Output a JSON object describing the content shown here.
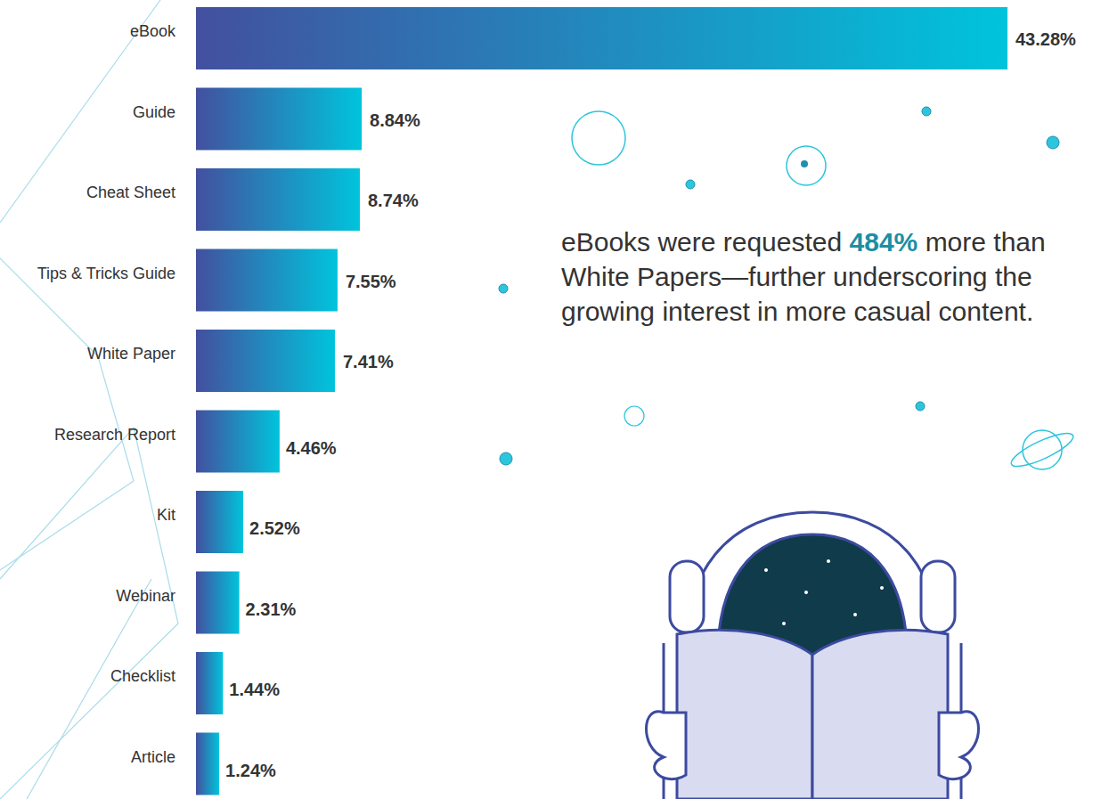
{
  "chart_data": {
    "type": "bar",
    "orientation": "horizontal",
    "categories": [
      "eBook",
      "Guide",
      "Cheat Sheet",
      "Tips & Tricks Guide",
      "White Paper",
      "Research Report",
      "Kit",
      "Webinar",
      "Checklist",
      "Article"
    ],
    "values": [
      43.28,
      8.84,
      8.74,
      7.55,
      7.41,
      4.46,
      2.52,
      2.31,
      1.44,
      1.24
    ],
    "value_labels": [
      "43.28%",
      "8.84%",
      "8.74%",
      "7.55%",
      "7.41%",
      "4.46%",
      "2.52%",
      "2.31%",
      "1.44%",
      "1.24%"
    ],
    "xlim": [
      0,
      43.28
    ],
    "color": "#00c4dc",
    "data_labels": true,
    "tick_labels": false,
    "grid": false,
    "annotation": [
      "eBooks were requested",
      "484%",
      "more than White Papers—further underscoring the growing interest in more casual content."
    ]
  }
}
